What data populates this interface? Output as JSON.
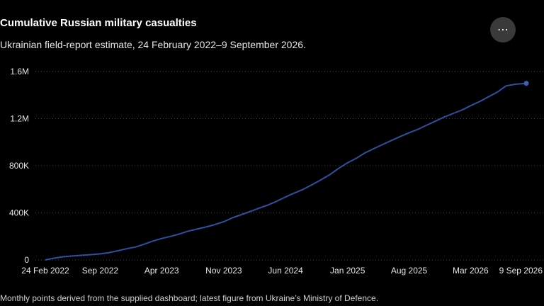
{
  "header": {
    "title": "Cumulative Russian military casualties",
    "subtitle": "Ukrainian field-report estimate, 24 February 2022–9 September 2026.",
    "more_label": "⋯"
  },
  "footnote": "Monthly points derived from the supplied dashboard; latest figure from Ukraine’s Ministry of Defence.",
  "colors": {
    "line": "#2f4f9f",
    "marker": "#3b5fb8",
    "grid": "#444444",
    "background": "#000000"
  },
  "chart_data": {
    "type": "line",
    "title": "Cumulative Russian military casualties",
    "xlabel": "",
    "ylabel": "",
    "ylim": [
      0,
      1600000
    ],
    "xlim": [
      "2022-02-24",
      "2026-09-09"
    ],
    "grid": true,
    "y_ticks": [
      {
        "value": 0,
        "label": "0"
      },
      {
        "value": 400000,
        "label": "400K"
      },
      {
        "value": 800000,
        "label": "800K"
      },
      {
        "value": 1200000,
        "label": "1.2M"
      },
      {
        "value": 1600000,
        "label": "1.6M"
      }
    ],
    "x_ticks": [
      {
        "date": "2022-02-24",
        "label": "24 Feb 2022"
      },
      {
        "date": "2022-09-01",
        "label": "Sep 2022"
      },
      {
        "date": "2023-04-01",
        "label": "Apr 2023"
      },
      {
        "date": "2023-11-01",
        "label": "Nov 2023"
      },
      {
        "date": "2024-06-01",
        "label": "Jun 2024"
      },
      {
        "date": "2025-01-01",
        "label": "Jan 2025"
      },
      {
        "date": "2025-08-01",
        "label": "Aug 2025"
      },
      {
        "date": "2026-03-01",
        "label": "Mar 2026"
      },
      {
        "date": "2026-09-09",
        "label": "9 Sep 2026"
      }
    ],
    "series": [
      {
        "points": [
          {
            "x": "2022-02-24",
            "y": 0
          },
          {
            "x": "2022-04-01",
            "y": 18000
          },
          {
            "x": "2022-05-01",
            "y": 28000
          },
          {
            "x": "2022-06-01",
            "y": 35000
          },
          {
            "x": "2022-07-01",
            "y": 40000
          },
          {
            "x": "2022-08-01",
            "y": 45000
          },
          {
            "x": "2022-09-01",
            "y": 52000
          },
          {
            "x": "2022-10-01",
            "y": 62000
          },
          {
            "x": "2022-11-01",
            "y": 78000
          },
          {
            "x": "2022-12-01",
            "y": 95000
          },
          {
            "x": "2023-01-01",
            "y": 110000
          },
          {
            "x": "2023-02-01",
            "y": 135000
          },
          {
            "x": "2023-03-01",
            "y": 160000
          },
          {
            "x": "2023-04-01",
            "y": 182000
          },
          {
            "x": "2023-05-01",
            "y": 200000
          },
          {
            "x": "2023-06-01",
            "y": 220000
          },
          {
            "x": "2023-07-01",
            "y": 245000
          },
          {
            "x": "2023-08-01",
            "y": 262000
          },
          {
            "x": "2023-09-01",
            "y": 280000
          },
          {
            "x": "2023-10-01",
            "y": 300000
          },
          {
            "x": "2023-11-01",
            "y": 325000
          },
          {
            "x": "2023-12-01",
            "y": 358000
          },
          {
            "x": "2024-01-01",
            "y": 385000
          },
          {
            "x": "2024-02-01",
            "y": 412000
          },
          {
            "x": "2024-03-01",
            "y": 440000
          },
          {
            "x": "2024-04-01",
            "y": 466000
          },
          {
            "x": "2024-05-01",
            "y": 498000
          },
          {
            "x": "2024-06-01",
            "y": 535000
          },
          {
            "x": "2024-07-01",
            "y": 568000
          },
          {
            "x": "2024-08-01",
            "y": 600000
          },
          {
            "x": "2024-09-01",
            "y": 640000
          },
          {
            "x": "2024-10-01",
            "y": 680000
          },
          {
            "x": "2024-11-01",
            "y": 725000
          },
          {
            "x": "2024-12-01",
            "y": 778000
          },
          {
            "x": "2025-01-01",
            "y": 825000
          },
          {
            "x": "2025-02-01",
            "y": 865000
          },
          {
            "x": "2025-03-01",
            "y": 908000
          },
          {
            "x": "2025-04-01",
            "y": 945000
          },
          {
            "x": "2025-05-01",
            "y": 980000
          },
          {
            "x": "2025-06-01",
            "y": 1015000
          },
          {
            "x": "2025-07-01",
            "y": 1048000
          },
          {
            "x": "2025-08-01",
            "y": 1080000
          },
          {
            "x": "2025-09-01",
            "y": 1110000
          },
          {
            "x": "2025-10-01",
            "y": 1145000
          },
          {
            "x": "2025-11-01",
            "y": 1180000
          },
          {
            "x": "2025-12-01",
            "y": 1215000
          },
          {
            "x": "2026-01-01",
            "y": 1245000
          },
          {
            "x": "2026-02-01",
            "y": 1275000
          },
          {
            "x": "2026-03-01",
            "y": 1310000
          },
          {
            "x": "2026-04-01",
            "y": 1345000
          },
          {
            "x": "2026-05-01",
            "y": 1385000
          },
          {
            "x": "2026-06-01",
            "y": 1425000
          },
          {
            "x": "2026-07-01",
            "y": 1478000
          },
          {
            "x": "2026-08-01",
            "y": 1492000
          },
          {
            "x": "2026-09-09",
            "y": 1500000
          }
        ]
      }
    ]
  }
}
